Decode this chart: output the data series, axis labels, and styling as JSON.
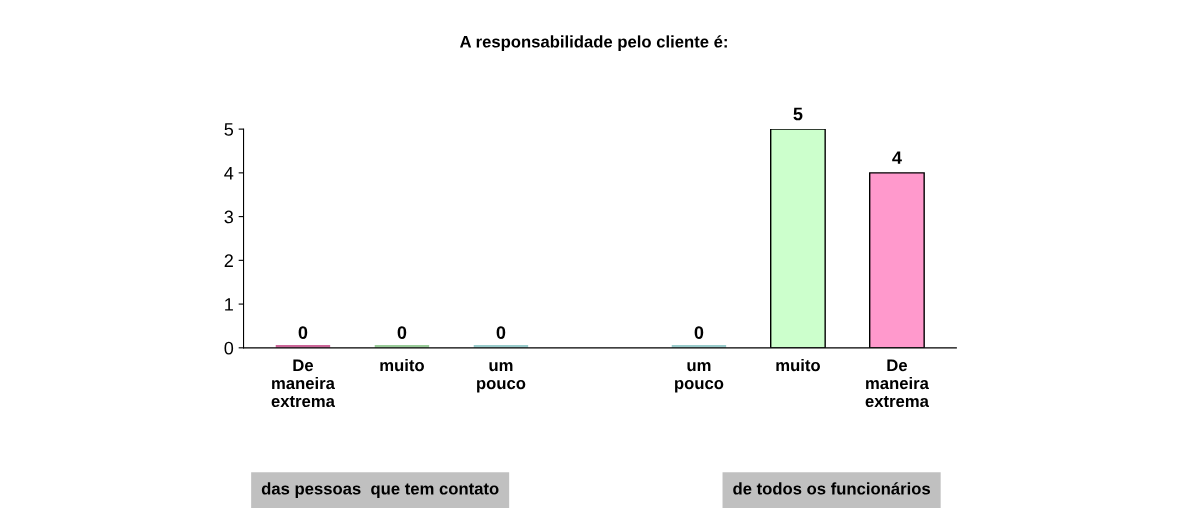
{
  "chart_data": {
    "type": "bar",
    "title": "A responsabilidade pelo cliente é:",
    "categories": [
      "De maneira extrema",
      "muito",
      "um pouco",
      null,
      "um pouco",
      "muito",
      "De maneira extrema"
    ],
    "values": [
      0,
      0,
      0,
      null,
      0,
      5,
      4
    ],
    "colors": [
      "#cc6699",
      "#99cc99",
      "#99cccc",
      "#cccccc",
      "#99cccc",
      "#ccffcc",
      "#ff99cc"
    ],
    "ylim": [
      0,
      5
    ],
    "yticks": [
      0,
      1,
      2,
      3,
      4,
      5
    ],
    "grid": false,
    "data_labels": true,
    "legend": false,
    "annotations": [
      "das pessoas  que tem contato",
      "de todos os funcionários"
    ]
  }
}
